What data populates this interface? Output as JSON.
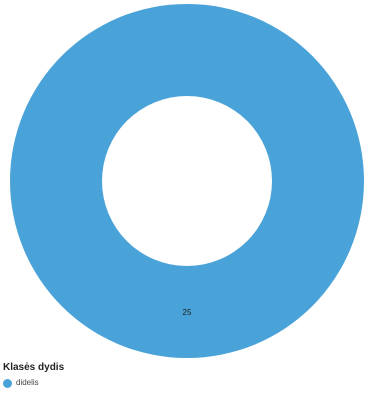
{
  "chart_data": {
    "type": "pie",
    "variant": "donut",
    "title": "",
    "legend_title": "Klasės dydis",
    "legend_position": "bottom-left",
    "series": [
      {
        "name": "didelis",
        "value": 25,
        "label": "25",
        "color": "#4aa3d8"
      }
    ]
  }
}
